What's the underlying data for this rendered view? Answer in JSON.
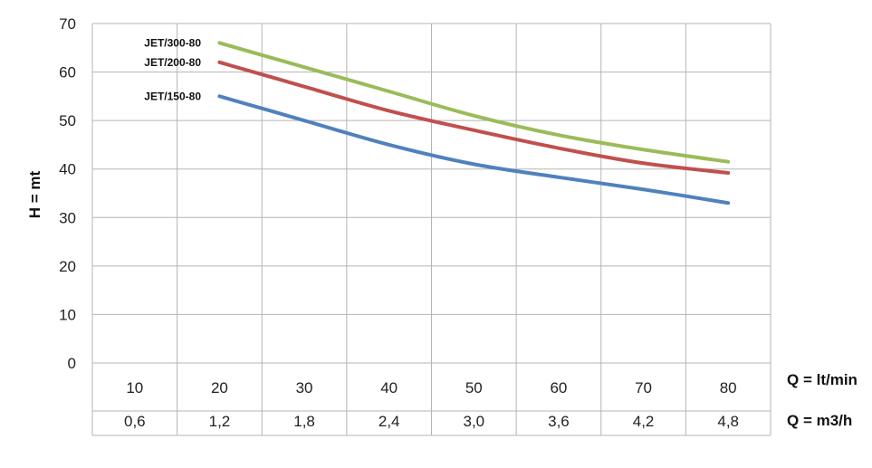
{
  "chart_data": {
    "type": "line",
    "ylabel": "H = mt",
    "ylim": [
      0,
      70
    ],
    "y_ticks": [
      "0",
      "10",
      "20",
      "30",
      "40",
      "50",
      "60",
      "70"
    ],
    "x": [
      20,
      30,
      40,
      50,
      60,
      70,
      80
    ],
    "xlim": [
      10,
      80
    ],
    "x_rows": [
      {
        "label": "Q = lt/min",
        "ticks": [
          "10",
          "20",
          "30",
          "40",
          "50",
          "60",
          "70",
          "80"
        ]
      },
      {
        "label": "Q = m3/h",
        "ticks": [
          "0,6",
          "1,2",
          "1,8",
          "2,4",
          "3,0",
          "3,6",
          "4,2",
          "4,8"
        ]
      }
    ],
    "grid": true,
    "series": [
      {
        "name": "JET/300-80",
        "color": "#9bbb59",
        "values": [
          66,
          61,
          56,
          51,
          47,
          44,
          41.5
        ]
      },
      {
        "name": "JET/200-80",
        "color": "#c0504d",
        "values": [
          62,
          57,
          52,
          48,
          44.3,
          41.2,
          39.2
        ]
      },
      {
        "name": "JET/150-80",
        "color": "#4f81bd",
        "values": [
          55,
          50,
          45,
          41,
          38.3,
          35.8,
          33
        ]
      }
    ]
  }
}
